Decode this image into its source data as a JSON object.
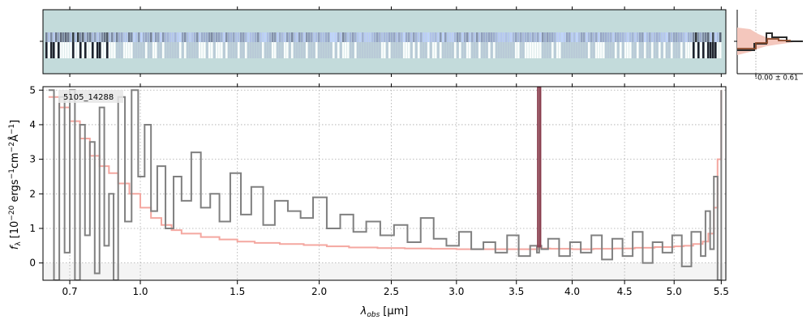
{
  "chart_data": [
    {
      "type": "heatmap",
      "panel": "2d-spectrum",
      "background_color": "#c3dbdb",
      "description_values": "2D spectrum image, dark near blue end, light band across middle",
      "x_axis": "same as spectrum panel (unlabeled)"
    },
    {
      "type": "histogram",
      "panel": "residual-histogram",
      "annotation": "-0.00 ± 0.61",
      "colors": {
        "fill": "#f4c7bd",
        "step_dark": "#2b2b2b",
        "step_brown": "#8b4a2b"
      }
    },
    {
      "type": "line",
      "panel": "1d-spectrum",
      "label": "5105_14288",
      "xlabel_main": "λ",
      "xlabel_sub": "obs",
      "xlabel_unit": "[μm]",
      "ylabel_prefix": "f",
      "ylabel_sub": "λ",
      "ylabel_body": "[10",
      "ylabel_exp1": "−20",
      "ylabel_mid1": " ergs",
      "ylabel_exp2": "−1",
      "ylabel_mid2": "cm",
      "ylabel_exp3": "−2",
      "ylabel_mid3": "Å",
      "ylabel_exp4": "−1",
      "ylabel_end": "]",
      "xlim": [
        0.6,
        5.55
      ],
      "ylim": [
        -0.5,
        5.1
      ],
      "x_scale": "sqrt",
      "x_ticks": [
        0.7,
        1.0,
        1.5,
        2.0,
        2.5,
        3.0,
        3.5,
        4.0,
        4.5,
        5.0,
        5.5
      ],
      "x_tick_labels": [
        "0.7",
        "1.0",
        "1.5",
        "2.0",
        "2.5",
        "3.0",
        "3.5",
        "4.0",
        "4.5",
        "5.0",
        "5.5"
      ],
      "y_ticks": [
        0,
        1,
        2,
        3,
        4,
        5
      ],
      "y_tick_labels": [
        "0",
        "1",
        "2",
        "3",
        "4",
        "5"
      ],
      "grid": true,
      "series": [
        {
          "role": "data",
          "color": "#808080",
          "x": [
            0.62,
            0.64,
            0.66,
            0.68,
            0.7,
            0.72,
            0.74,
            0.76,
            0.78,
            0.8,
            0.82,
            0.84,
            0.86,
            0.88,
            0.9,
            0.93,
            0.96,
            0.99,
            1.02,
            1.05,
            1.08,
            1.12,
            1.16,
            1.2,
            1.25,
            1.3,
            1.35,
            1.4,
            1.46,
            1.52,
            1.58,
            1.65,
            1.72,
            1.8,
            1.88,
            1.96,
            2.05,
            2.14,
            2.23,
            2.32,
            2.42,
            2.52,
            2.62,
            2.72,
            2.82,
            2.92,
            3.02,
            3.12,
            3.22,
            3.32,
            3.42,
            3.52,
            3.62,
            3.68,
            3.7,
            3.72,
            3.78,
            3.88,
            3.98,
            4.08,
            4.18,
            4.28,
            4.38,
            4.48,
            4.58,
            4.68,
            4.78,
            4.88,
            4.98,
            5.08,
            5.18,
            5.28,
            5.33,
            5.38,
            5.42,
            5.46,
            5.5
          ],
          "y": [
            5.0,
            -0.5,
            4.8,
            0.3,
            5.0,
            -0.5,
            4.0,
            0.8,
            3.5,
            -0.3,
            4.5,
            0.5,
            2.0,
            -0.5,
            4.8,
            1.2,
            5.0,
            2.5,
            4.0,
            1.5,
            2.8,
            1.0,
            2.5,
            1.8,
            3.2,
            1.6,
            2.0,
            1.2,
            2.6,
            1.4,
            2.2,
            1.1,
            1.8,
            1.5,
            1.3,
            1.9,
            1.0,
            1.4,
            0.9,
            1.2,
            0.8,
            1.1,
            0.6,
            1.3,
            0.7,
            0.5,
            0.9,
            0.4,
            0.6,
            0.3,
            0.8,
            0.2,
            0.5,
            0.3,
            0.5,
            0.4,
            0.7,
            0.2,
            0.6,
            0.3,
            0.8,
            0.1,
            0.7,
            0.2,
            0.9,
            0.0,
            0.6,
            0.3,
            0.8,
            -0.1,
            0.9,
            0.2,
            1.5,
            0.4,
            2.5,
            -0.5,
            5.0
          ]
        },
        {
          "role": "model",
          "color": "#f4a7a0",
          "x": [
            0.62,
            0.66,
            0.7,
            0.74,
            0.78,
            0.82,
            0.86,
            0.9,
            0.95,
            1.0,
            1.05,
            1.1,
            1.15,
            1.2,
            1.3,
            1.4,
            1.5,
            1.6,
            1.75,
            1.9,
            2.05,
            2.2,
            2.4,
            2.6,
            2.8,
            3.0,
            3.2,
            3.4,
            3.6,
            3.69,
            3.71,
            3.8,
            4.0,
            4.2,
            4.4,
            4.6,
            4.8,
            5.0,
            5.1,
            5.2,
            5.3,
            5.36,
            5.42,
            5.46,
            5.5
          ],
          "y": [
            4.8,
            4.5,
            4.1,
            3.6,
            3.1,
            2.8,
            2.6,
            2.3,
            2.0,
            1.6,
            1.3,
            1.1,
            0.95,
            0.85,
            0.75,
            0.68,
            0.62,
            0.58,
            0.55,
            0.52,
            0.48,
            0.45,
            0.43,
            0.42,
            0.41,
            0.4,
            0.4,
            0.4,
            0.4,
            0.42,
            0.42,
            0.41,
            0.4,
            0.41,
            0.42,
            0.44,
            0.46,
            0.48,
            0.5,
            0.55,
            0.62,
            0.85,
            1.6,
            3.0,
            5.0
          ]
        },
        {
          "role": "emission-line",
          "color": "#8b4050",
          "x": [
            3.69,
            3.69,
            3.71,
            3.71
          ],
          "y": [
            0.45,
            5.1,
            5.1,
            0.45
          ]
        }
      ]
    }
  ]
}
